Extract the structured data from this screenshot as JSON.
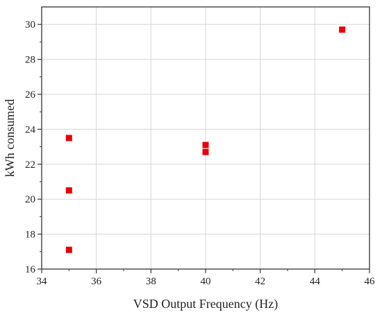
{
  "chart_data": {
    "type": "scatter",
    "xlabel": "VSD Output Frequency (Hz)",
    "ylabel": "kWh consumed",
    "xlim": [
      34,
      46
    ],
    "ylim": [
      16,
      31
    ],
    "x_ticks": [
      "34",
      "36",
      "38",
      "40",
      "42",
      "44",
      "46"
    ],
    "y_ticks": [
      "16",
      "18",
      "20",
      "22",
      "24",
      "26",
      "28",
      "30"
    ],
    "grid": true,
    "marker": "square",
    "marker_color": "#e8000b",
    "points": [
      {
        "x": 35,
        "y": 23.5
      },
      {
        "x": 35,
        "y": 20.5
      },
      {
        "x": 35,
        "y": 17.1
      },
      {
        "x": 40,
        "y": 23.1
      },
      {
        "x": 40,
        "y": 22.7
      },
      {
        "x": 45,
        "y": 29.7
      }
    ]
  }
}
